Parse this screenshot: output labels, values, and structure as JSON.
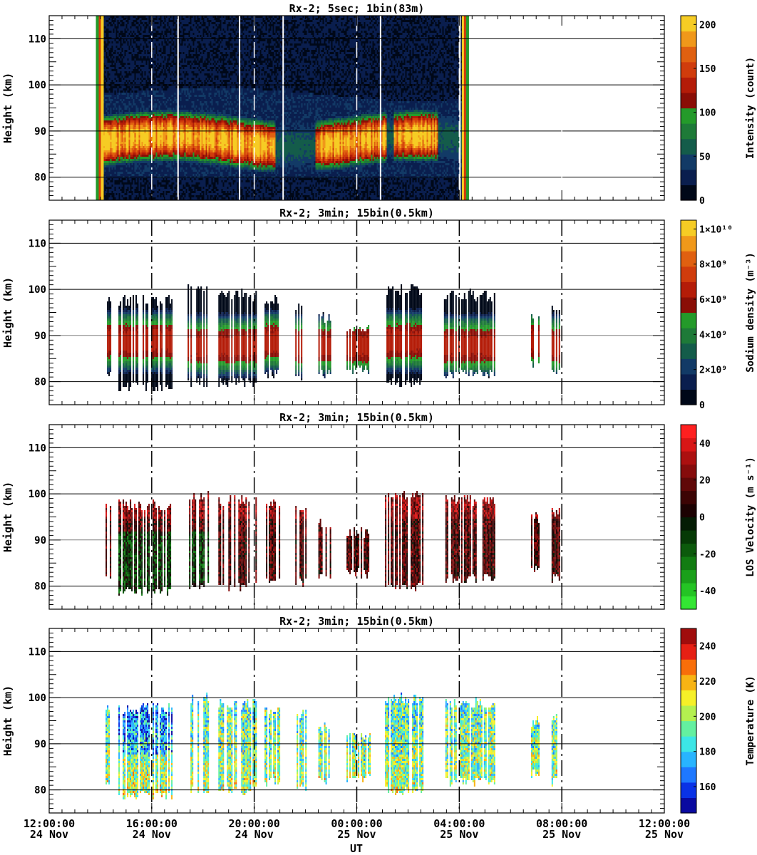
{
  "figure": {
    "xlabel": "UT",
    "x_ticks": [
      {
        "time": "12:00:00",
        "date": "24 Nov"
      },
      {
        "time": "16:00:00",
        "date": "24 Nov"
      },
      {
        "time": "20:00:00",
        "date": "24 Nov"
      },
      {
        "time": "00:00:00",
        "date": "25 Nov"
      },
      {
        "time": "04:00:00",
        "date": "25 Nov"
      },
      {
        "time": "08:00:00",
        "date": "25 Nov"
      },
      {
        "time": "12:00:00",
        "date": "25 Nov"
      }
    ]
  },
  "chart_data": [
    {
      "type": "heatmap",
      "title": "Rx-2;  5sec; 1bin(83m)",
      "xlabel": "UT",
      "ylabel": "Height (km)",
      "x_range_hours": [
        0,
        24
      ],
      "ylim": [
        75,
        115
      ],
      "y_ticks": [
        80,
        90,
        100,
        110
      ],
      "colorbar": {
        "label": "Intensity (count)",
        "range": [
          0,
          210
        ],
        "ticks": [
          "0",
          "50",
          "100",
          "150",
          "200"
        ],
        "tick_values": [
          0,
          50,
          100,
          150,
          200
        ],
        "colors": [
          "#000818",
          "#0a1e4e",
          "#123a66",
          "#145c4a",
          "#1e7a38",
          "#249a2a",
          "#8a0e06",
          "#b41c08",
          "#d03c0c",
          "#e06010",
          "#f0981a",
          "#f6cc24"
        ]
      },
      "layer_sample": {
        "peak_km": 88,
        "top_km": 96,
        "bottom_km": 81
      },
      "data_blocks": [
        [
          2.1,
          16.1
        ]
      ],
      "thin_white_gaps_hours": [
        5.0,
        7.4,
        9.1,
        12.9,
        16.0
      ]
    },
    {
      "type": "heatmap",
      "title": "Rx-2; 3min; 15bin(0.5km)",
      "xlabel": "UT",
      "ylabel": "Height (km)",
      "x_range_hours": [
        0,
        24
      ],
      "ylim": [
        75,
        115
      ],
      "y_ticks": [
        80,
        90,
        100,
        110
      ],
      "colorbar": {
        "label": "Sodium density (m⁻³)",
        "range": [
          0,
          10500000000.0
        ],
        "ticks": [
          "0",
          "2×10⁹",
          "4×10⁹",
          "6×10⁹",
          "8×10⁹",
          "1×10¹⁰"
        ],
        "tick_values": [
          0,
          2000000000.0,
          4000000000.0,
          6000000000.0,
          8000000000.0,
          10000000000.0
        ],
        "colors": [
          "#000818",
          "#0a1e4e",
          "#123a66",
          "#145c4a",
          "#1e7a38",
          "#249a2a",
          "#8a0e06",
          "#b41c08",
          "#d03c0c",
          "#e06010",
          "#f0981a",
          "#f6cc24"
        ]
      },
      "data_blocks": [
        [
          2.2,
          2.4
        ],
        [
          2.7,
          4.8
        ],
        [
          5.4,
          6.2
        ],
        [
          6.6,
          8.1
        ],
        [
          8.4,
          9.0
        ],
        [
          9.6,
          10.0
        ],
        [
          10.5,
          11.0
        ],
        [
          11.6,
          12.5
        ],
        [
          13.1,
          14.6
        ],
        [
          15.4,
          17.4
        ],
        [
          18.8,
          19.1
        ],
        [
          19.6,
          19.9
        ]
      ],
      "block_extents_km": [
        [
          82,
          98
        ],
        [
          79,
          98
        ],
        [
          80,
          100
        ],
        [
          80,
          99
        ],
        [
          82,
          98
        ],
        [
          81,
          97
        ],
        [
          82,
          94
        ],
        [
          83,
          92
        ],
        [
          80,
          100
        ],
        [
          82,
          99
        ],
        [
          84,
          95
        ],
        [
          82,
          96
        ]
      ],
      "block_peaks_km": [
        89,
        89,
        88,
        88,
        89,
        88,
        88,
        88,
        89,
        88,
        89,
        88
      ]
    },
    {
      "type": "heatmap",
      "title": "Rx-2; 3min; 15bin(0.5km)",
      "xlabel": "UT",
      "ylabel": "Height (km)",
      "x_range_hours": [
        0,
        24
      ],
      "ylim": [
        75,
        115
      ],
      "y_ticks": [
        80,
        90,
        100,
        110
      ],
      "colorbar": {
        "label": "LOS Velocity (m s⁻¹)",
        "range": [
          -50,
          50
        ],
        "ticks": [
          "-40",
          "-20",
          "0",
          "20",
          "40"
        ],
        "tick_values": [
          -40,
          -20,
          0,
          20,
          40
        ],
        "colors": [
          "#33e633",
          "#24c424",
          "#1aa01a",
          "#127c12",
          "#0c5a0c",
          "#063a06",
          "#041c04",
          "#1c0202",
          "#3c0404",
          "#600808",
          "#860c0c",
          "#ac1010",
          "#d81616",
          "#ff2020"
        ]
      },
      "data_blocks": [
        [
          2.2,
          2.4
        ],
        [
          2.7,
          4.8
        ],
        [
          5.4,
          6.2
        ],
        [
          6.6,
          8.1
        ],
        [
          8.4,
          9.0
        ],
        [
          9.6,
          10.0
        ],
        [
          10.5,
          11.0
        ],
        [
          11.6,
          12.5
        ],
        [
          13.1,
          14.6
        ],
        [
          15.4,
          17.4
        ],
        [
          18.8,
          19.1
        ],
        [
          19.6,
          19.9
        ]
      ],
      "block_extents_km": [
        [
          82,
          98
        ],
        [
          79,
          98
        ],
        [
          80,
          100
        ],
        [
          80,
          99
        ],
        [
          82,
          98
        ],
        [
          81,
          97
        ],
        [
          82,
          94
        ],
        [
          83,
          92
        ],
        [
          80,
          100
        ],
        [
          82,
          99
        ],
        [
          84,
          95
        ],
        [
          82,
          96
        ]
      ]
    },
    {
      "type": "heatmap",
      "title": "Rx-2; 3min; 15bin(0.5km)",
      "xlabel": "UT",
      "ylabel": "Height (km)",
      "x_range_hours": [
        0,
        24
      ],
      "ylim": [
        75,
        115
      ],
      "y_ticks": [
        80,
        90,
        100,
        110
      ],
      "colorbar": {
        "label": "Temperature (K)",
        "range": [
          145,
          250
        ],
        "ticks": [
          "160",
          "180",
          "200",
          "220",
          "240"
        ],
        "tick_values": [
          160,
          180,
          200,
          220,
          240
        ],
        "colors": [
          "#0a0aa0",
          "#0a32e6",
          "#1e78ff",
          "#28b4ff",
          "#3ce6e6",
          "#64f0a0",
          "#b4f050",
          "#f6f028",
          "#f8b414",
          "#f86e0a",
          "#e62014",
          "#a00c0c"
        ]
      },
      "data_blocks": [
        [
          2.2,
          2.4
        ],
        [
          2.7,
          4.8
        ],
        [
          5.4,
          6.2
        ],
        [
          6.6,
          8.1
        ],
        [
          8.4,
          9.0
        ],
        [
          9.6,
          10.0
        ],
        [
          10.5,
          11.0
        ],
        [
          11.6,
          12.5
        ],
        [
          13.1,
          14.6
        ],
        [
          15.4,
          17.4
        ],
        [
          18.8,
          19.1
        ],
        [
          19.6,
          19.9
        ]
      ],
      "block_extents_km": [
        [
          82,
          98
        ],
        [
          79,
          98
        ],
        [
          80,
          100
        ],
        [
          80,
          99
        ],
        [
          82,
          98
        ],
        [
          81,
          97
        ],
        [
          82,
          94
        ],
        [
          83,
          92
        ],
        [
          80,
          100
        ],
        [
          82,
          99
        ],
        [
          84,
          95
        ],
        [
          82,
          96
        ]
      ]
    }
  ]
}
